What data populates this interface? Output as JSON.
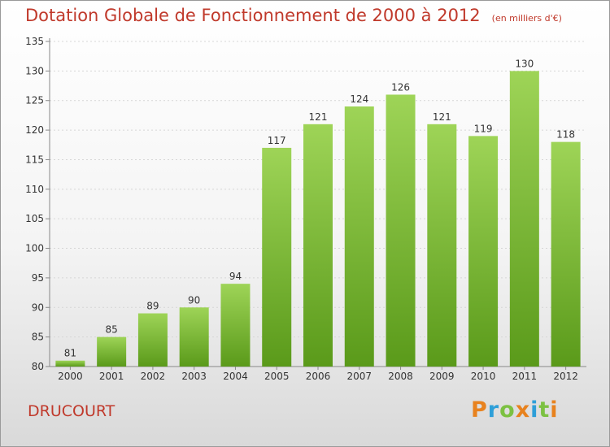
{
  "title": "Dotation Globale de Fonctionnement de 2000 à 2012",
  "unit": "(en milliers d'€)",
  "place": "DRUCOURT",
  "logo": {
    "letters": [
      "P",
      "r",
      "o",
      "x",
      "i",
      "t",
      "i"
    ],
    "colors": [
      "#e8821e",
      "#2e9fd8",
      "#7cc142",
      "#e8821e",
      "#2e9fd8",
      "#7cc142",
      "#e8821e"
    ]
  },
  "chart_data": {
    "type": "bar",
    "categories": [
      "2000",
      "2001",
      "2002",
      "2003",
      "2004",
      "2005",
      "2006",
      "2007",
      "2008",
      "2009",
      "2010",
      "2011",
      "2012"
    ],
    "values": [
      81,
      85,
      89,
      90,
      94,
      117,
      121,
      124,
      126,
      121,
      119,
      130,
      118
    ],
    "data_labels": [
      "81",
      "85",
      "89",
      "90",
      "94",
      "117",
      "121",
      "124",
      "126",
      "121",
      "119",
      "130",
      "118"
    ],
    "yticks": [
      "80",
      "85",
      "90",
      "95",
      "100",
      "105",
      "110",
      "115",
      "120",
      "125",
      "130",
      "135"
    ],
    "ylim": [
      80,
      135
    ],
    "grid": true,
    "bar_color_top": "#9ed457",
    "bar_color_bottom": "#5a9a1a",
    "text_color": "#c0392b"
  }
}
